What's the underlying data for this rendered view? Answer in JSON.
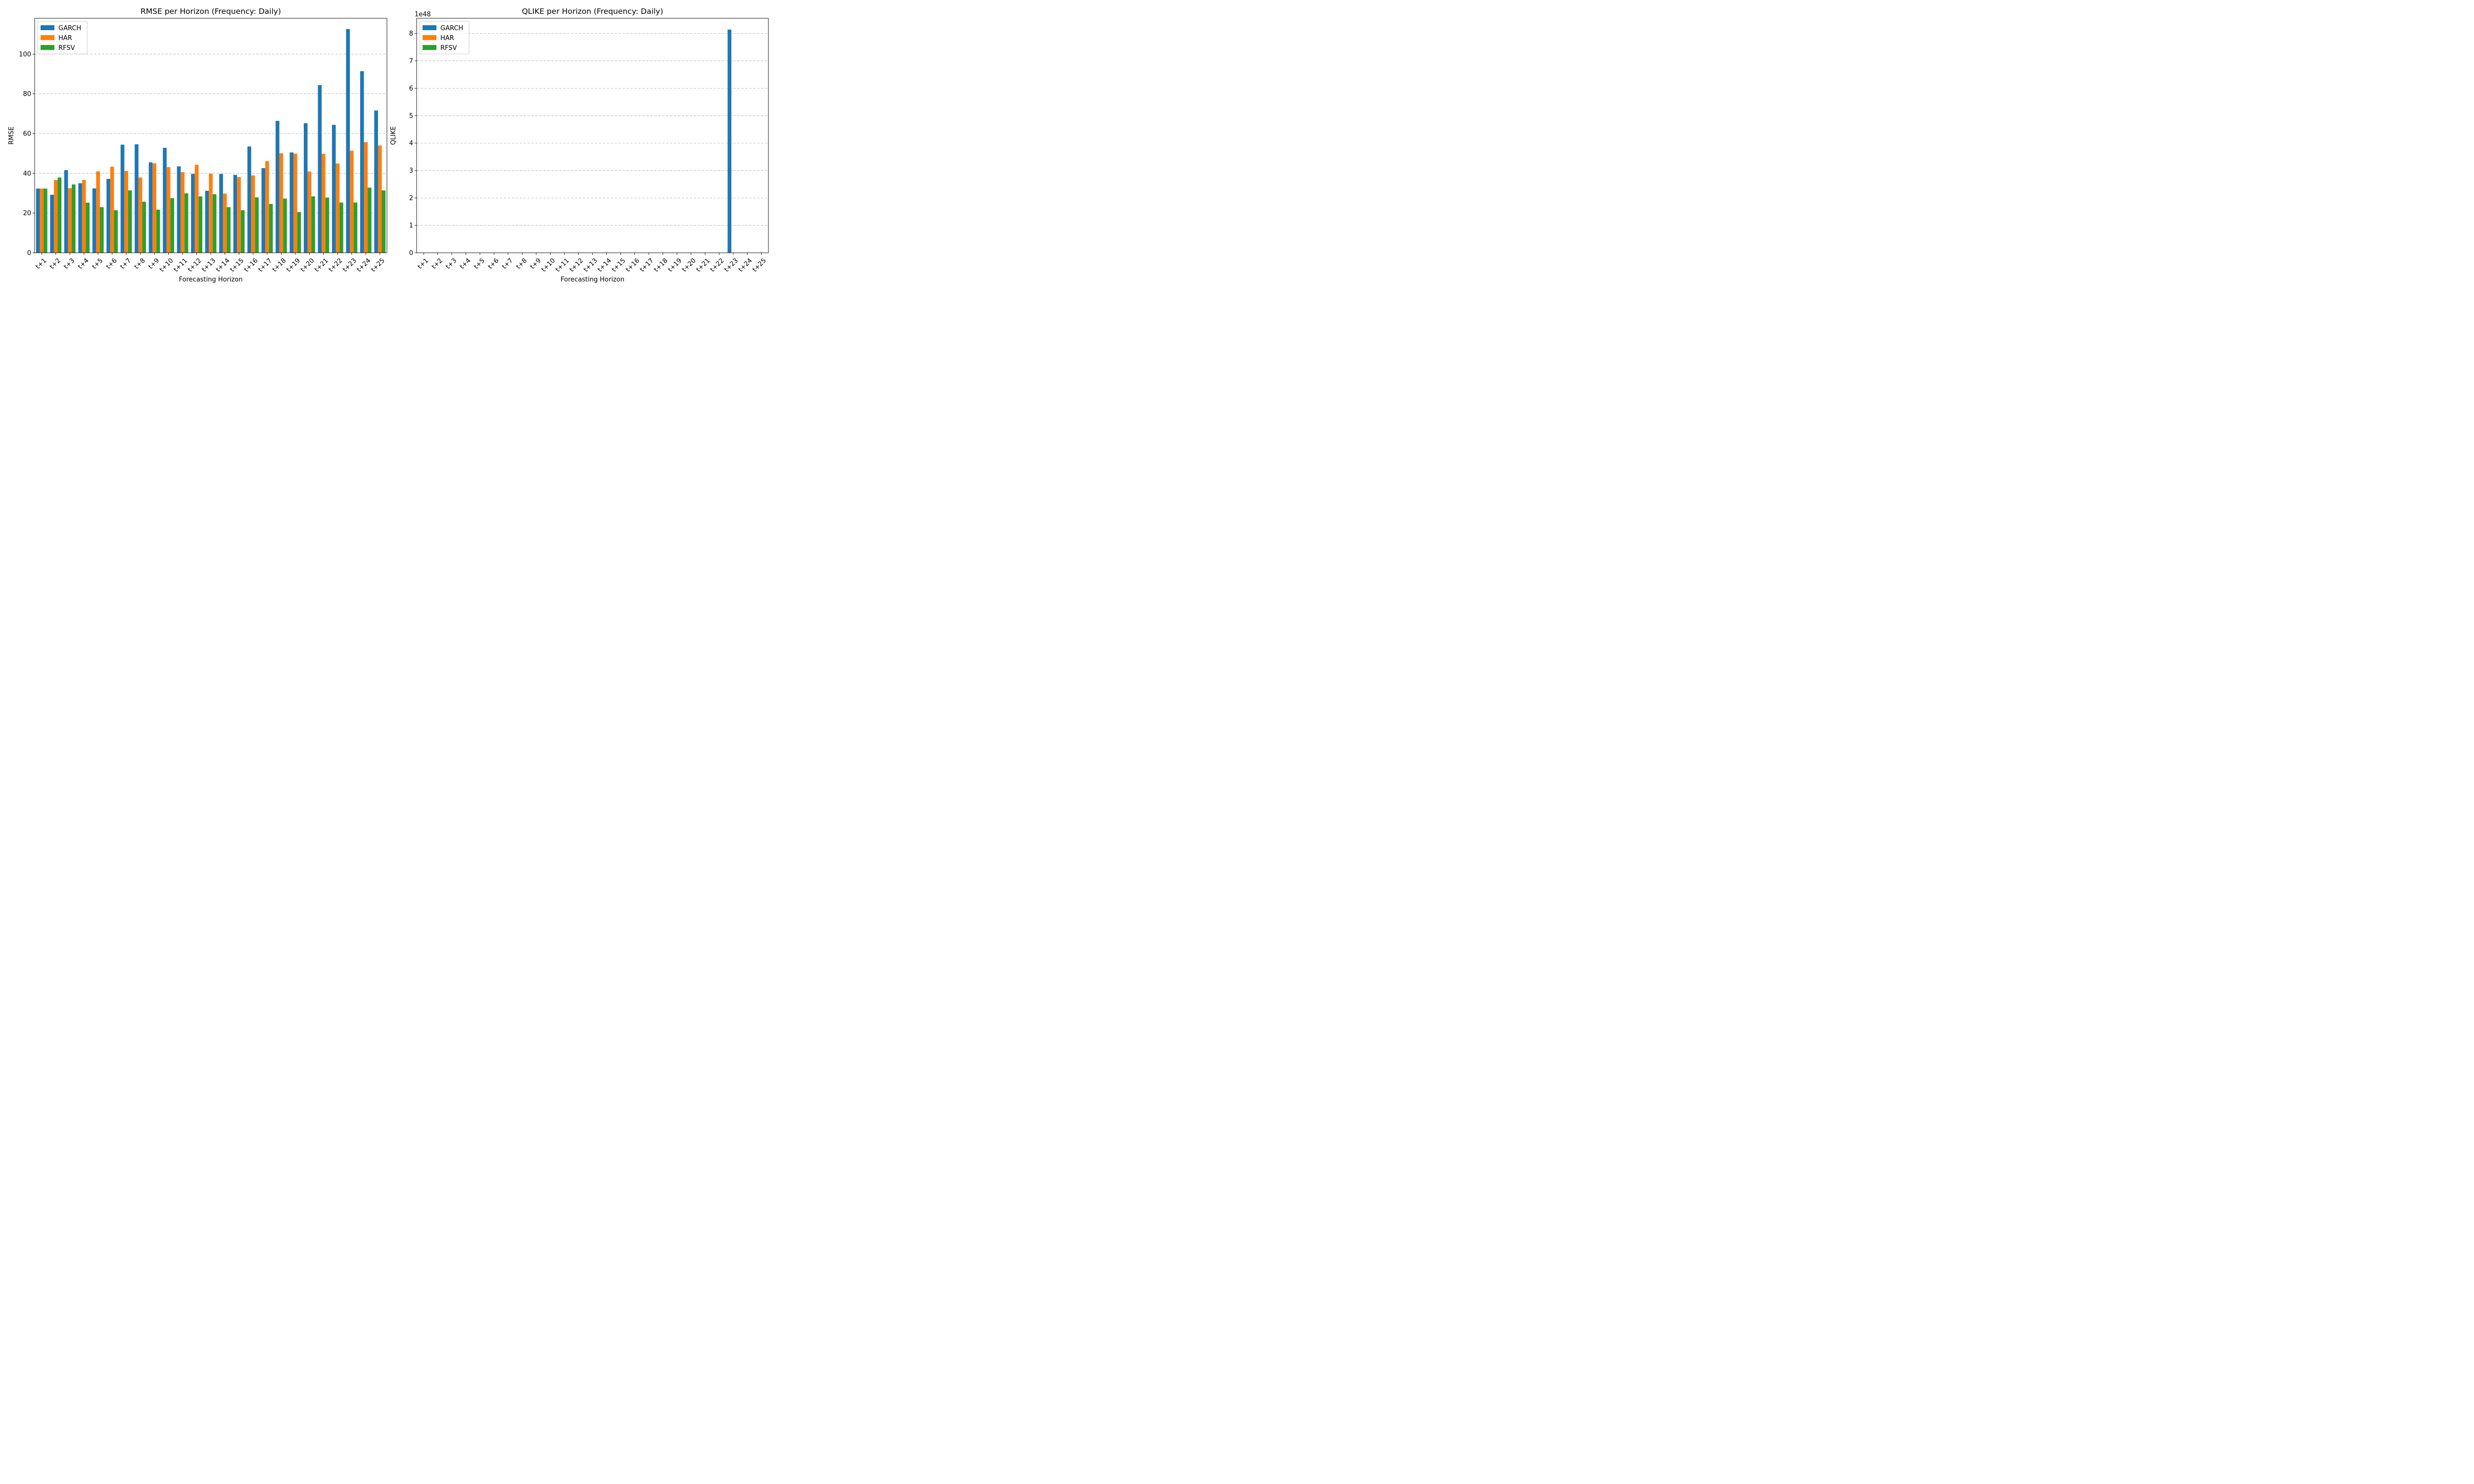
{
  "chart_data": [
    {
      "type": "bar",
      "title": "RMSE per Horizon (Frequency: Daily)",
      "xlabel": "Forecasting Horizon",
      "ylabel": "RMSE",
      "ylim": [
        0,
        118
      ],
      "yticks": [
        0,
        20,
        40,
        60,
        80,
        100
      ],
      "grid": "y-dashed",
      "legend_position": "top-left",
      "categories": [
        "t+1",
        "t+2",
        "t+3",
        "t+4",
        "t+5",
        "t+6",
        "t+7",
        "t+8",
        "t+9",
        "t+10",
        "t+11",
        "t+12",
        "t+13",
        "t+14",
        "t+15",
        "t+16",
        "t+17",
        "t+18",
        "t+19",
        "t+20",
        "t+21",
        "t+22",
        "t+23",
        "t+24",
        "t+25"
      ],
      "series": [
        {
          "name": "GARCH",
          "color": "#1f77b4",
          "values": [
            32.3,
            29.2,
            41.6,
            35.0,
            32.4,
            37.2,
            54.4,
            54.6,
            45.5,
            52.8,
            43.5,
            39.7,
            31.2,
            39.7,
            39.2,
            53.5,
            42.6,
            66.4,
            50.5,
            65.2,
            84.4,
            64.4,
            112.6,
            91.4,
            71.6
          ]
        },
        {
          "name": "HAR",
          "color": "#ff7f0e",
          "values": [
            32.3,
            36.6,
            32.5,
            36.6,
            41.0,
            43.3,
            41.2,
            37.9,
            45.0,
            43.1,
            40.6,
            44.3,
            39.8,
            29.8,
            38.1,
            38.9,
            46.1,
            50.1,
            49.9,
            40.9,
            49.8,
            44.9,
            51.4,
            55.7,
            54.0
          ]
        },
        {
          "name": "RFSV",
          "color": "#2ca02c",
          "values": [
            32.3,
            37.9,
            34.4,
            25.2,
            23.0,
            21.4,
            31.4,
            25.7,
            21.7,
            27.5,
            29.9,
            28.4,
            29.5,
            23.0,
            21.4,
            27.9,
            24.6,
            27.3,
            20.5,
            28.4,
            27.8,
            25.3,
            25.3,
            32.8,
            31.4
          ]
        }
      ]
    },
    {
      "type": "bar",
      "title": "QLIKE per Horizon (Frequency: Daily)",
      "xlabel": "Forecasting Horizon",
      "ylabel": "QLIKE",
      "offset_text": "1e48",
      "ylim": [
        0,
        8.55
      ],
      "yticks": [
        0,
        1,
        2,
        3,
        4,
        5,
        6,
        7,
        8
      ],
      "value_scale": "×1e48",
      "grid": "y-dashed",
      "legend_position": "top-left",
      "categories": [
        "t+1",
        "t+2",
        "t+3",
        "t+4",
        "t+5",
        "t+6",
        "t+7",
        "t+8",
        "t+9",
        "t+10",
        "t+11",
        "t+12",
        "t+13",
        "t+14",
        "t+15",
        "t+16",
        "t+17",
        "t+18",
        "t+19",
        "t+20",
        "t+21",
        "t+22",
        "t+23",
        "t+24",
        "t+25"
      ],
      "series": [
        {
          "name": "GARCH",
          "color": "#1f77b4",
          "values": [
            0,
            0,
            0,
            0,
            0,
            0,
            0,
            0,
            0,
            0,
            0,
            0,
            0,
            0,
            0,
            0,
            0,
            0,
            0,
            0,
            0,
            0,
            8.14,
            0,
            0
          ]
        },
        {
          "name": "HAR",
          "color": "#ff7f0e",
          "values": [
            0,
            0,
            0,
            0,
            0,
            0,
            0,
            0,
            0,
            0,
            0,
            0,
            0,
            0,
            0,
            0,
            0,
            0,
            0,
            0,
            0,
            0,
            0,
            0,
            0
          ]
        },
        {
          "name": "RFSV",
          "color": "#2ca02c",
          "values": [
            0,
            0,
            0,
            0,
            0,
            0,
            0,
            0,
            0,
            0,
            0,
            0,
            0,
            0,
            0,
            0,
            0,
            0,
            0,
            0,
            0,
            0,
            0,
            0,
            0
          ]
        }
      ]
    }
  ]
}
